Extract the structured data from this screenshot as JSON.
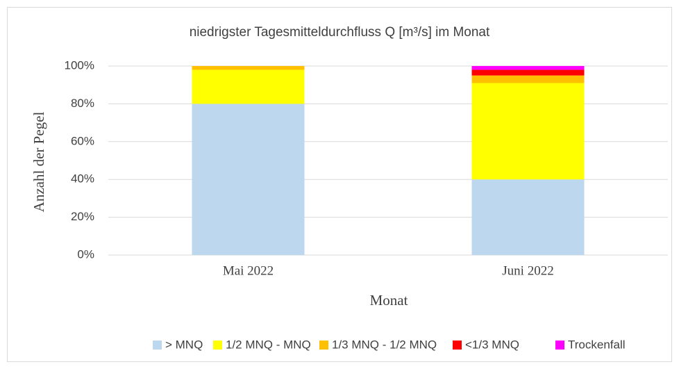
{
  "chart_data": {
    "type": "stacked_bar",
    "title": "niedrigster Tagesmitteldurchfluss Q [m³/s] im Monat",
    "x_label": "Monat",
    "y_label": "Anzahl der Pegel",
    "categories": [
      "Mai 2022",
      "Juni 2022"
    ],
    "series": [
      {
        "name": "> MNQ",
        "color": "#bdd7ee",
        "values": [
          80,
          40
        ]
      },
      {
        "name": "1/2 MNQ - MNQ",
        "color": "#ffff00",
        "values": [
          18,
          51
        ]
      },
      {
        "name": "1/3 MNQ - 1/2 MNQ",
        "color": "#ffc000",
        "values": [
          2,
          4
        ]
      },
      {
        "name": "<1/3 MNQ",
        "color": "#ff0000",
        "values": [
          0,
          3
        ]
      },
      {
        "name": "Trockenfall",
        "color": "#ff00ff",
        "values": [
          0,
          2
        ]
      }
    ],
    "ylim": [
      0,
      100
    ],
    "yticks": [
      {
        "value": 0,
        "label": "0%"
      },
      {
        "value": 20,
        "label": "20%"
      },
      {
        "value": 40,
        "label": "40%"
      },
      {
        "value": 60,
        "label": "60%"
      },
      {
        "value": 80,
        "label": "80%"
      },
      {
        "value": 100,
        "label": "100%"
      }
    ],
    "grid": true,
    "legend": "bottom"
  }
}
